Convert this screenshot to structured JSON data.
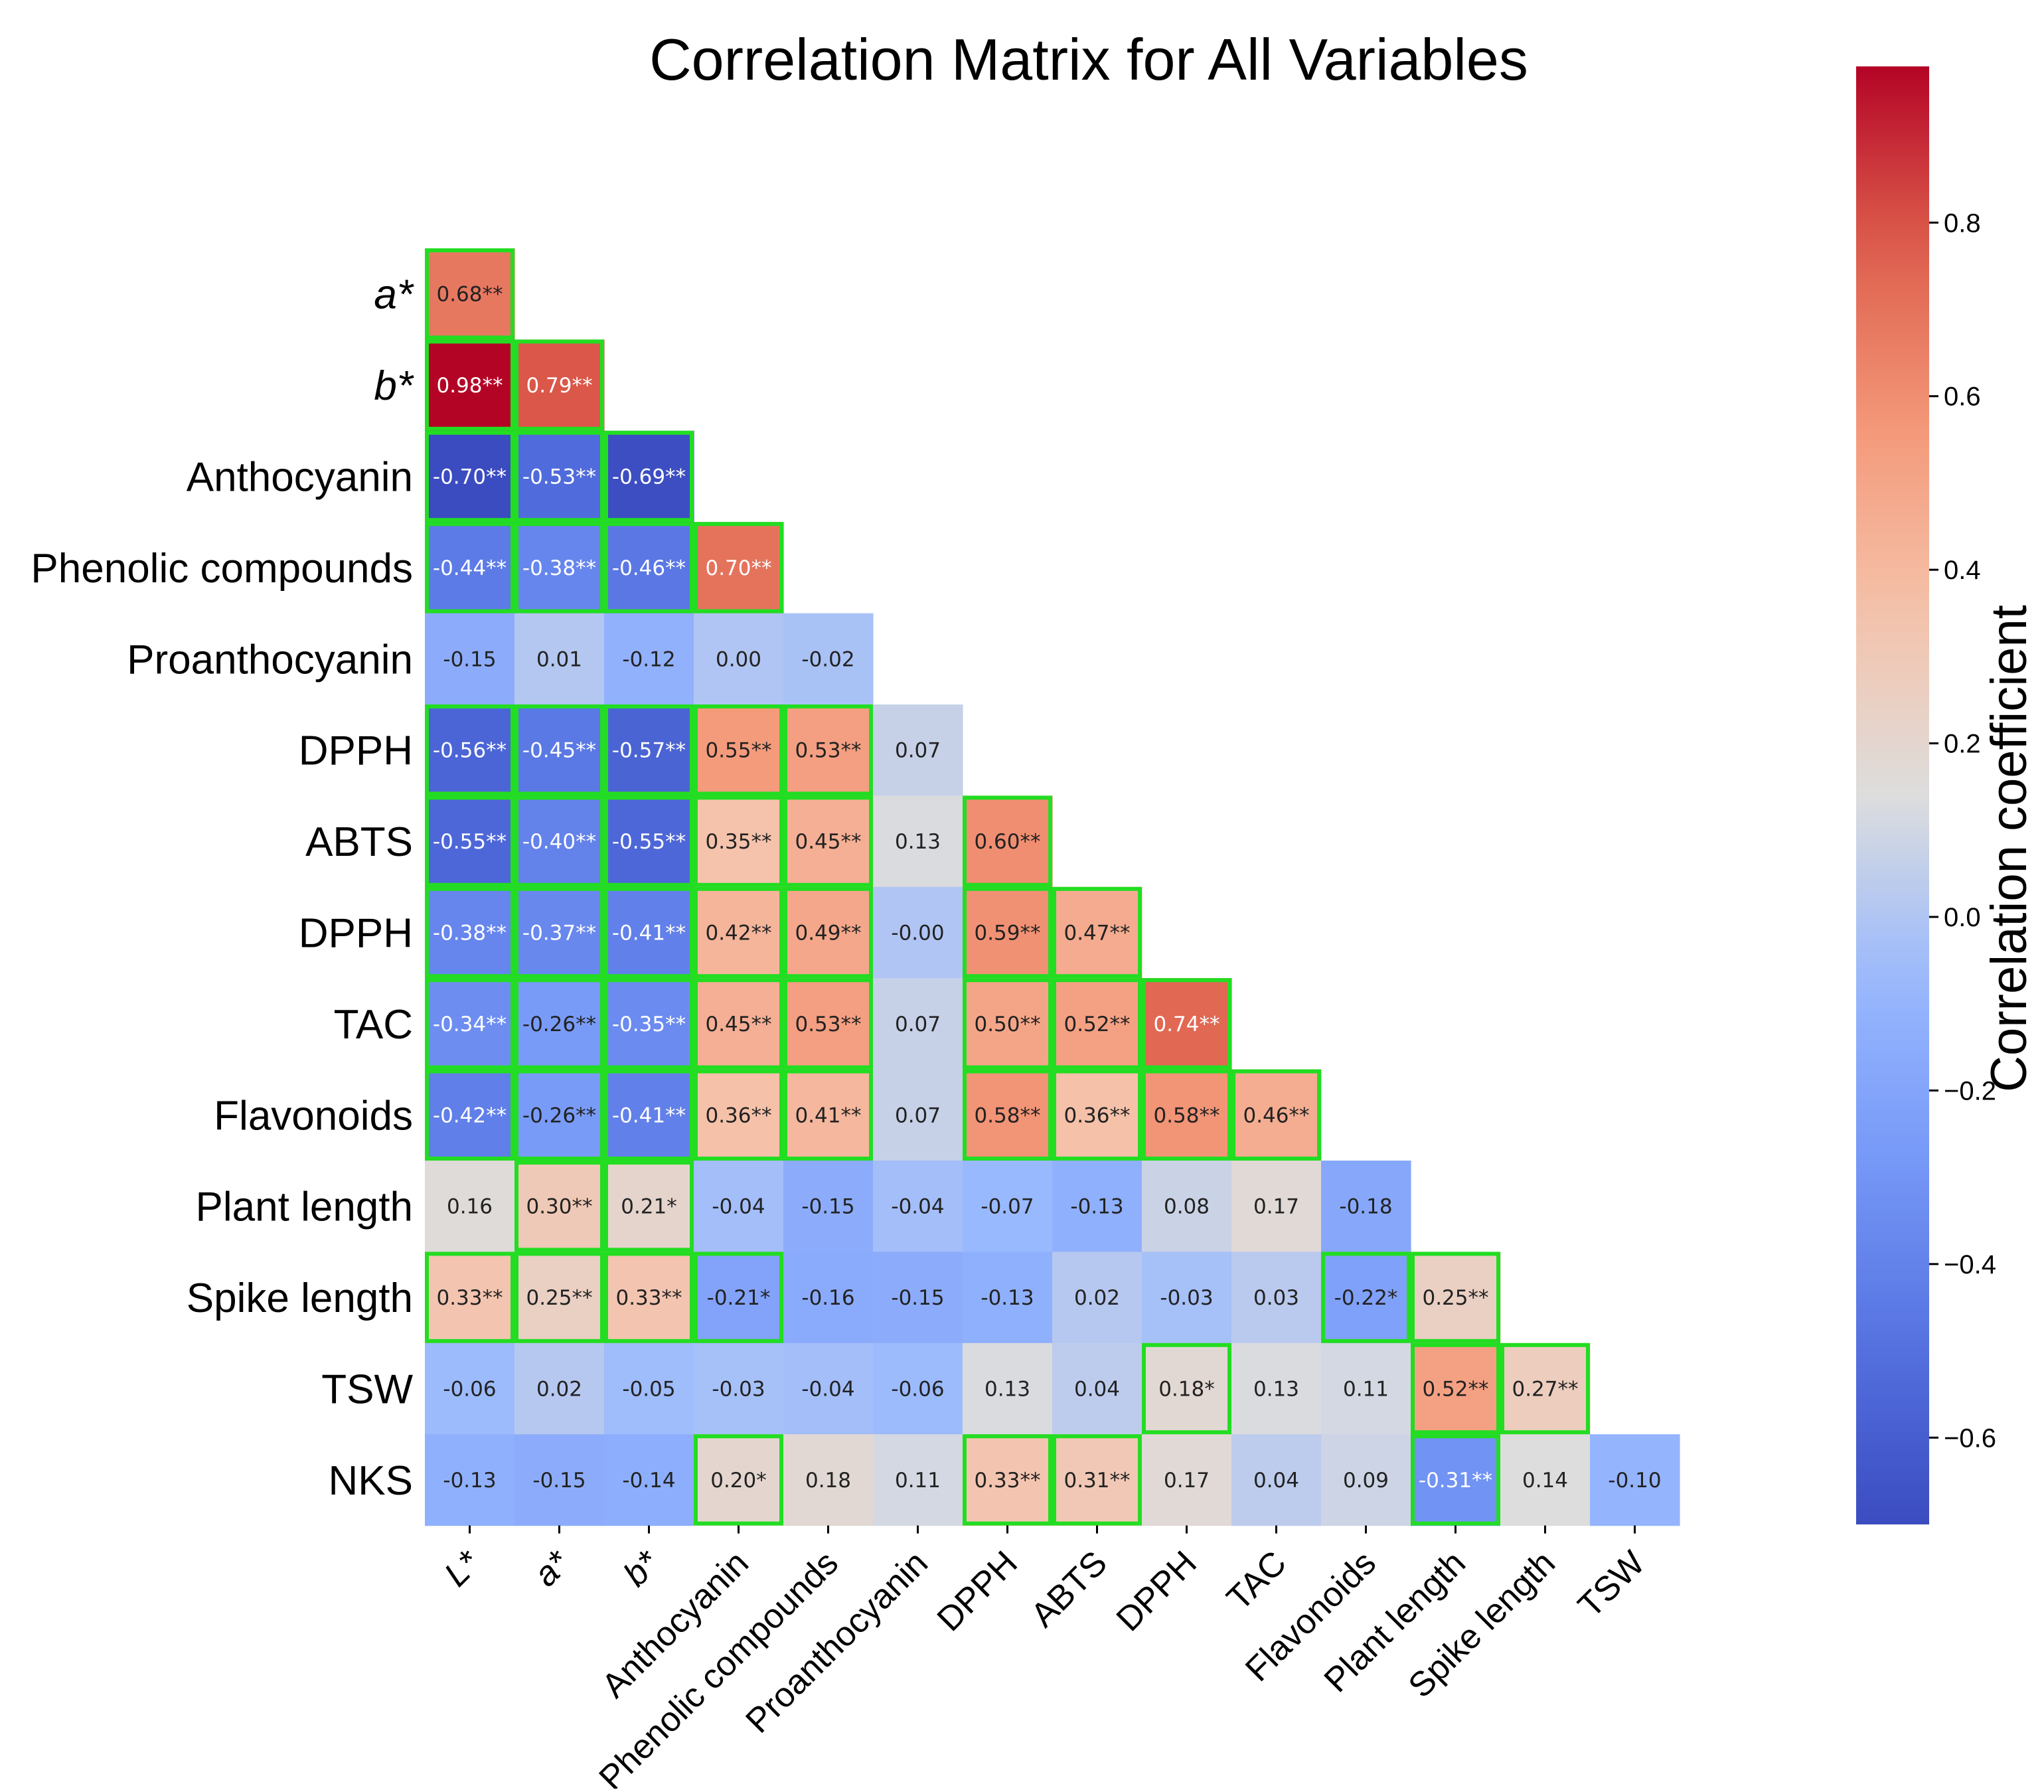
{
  "chart_data": {
    "type": "heatmap",
    "title": "Correlation Matrix for All Variables",
    "colorbar_label": "Correlation coefficient",
    "colorbar_range": [
      -0.7,
      0.98
    ],
    "colorbar_ticks": [
      {
        "value": 0.8,
        "label": "0.8"
      },
      {
        "value": 0.6,
        "label": "0.6"
      },
      {
        "value": 0.4,
        "label": "0.4"
      },
      {
        "value": 0.2,
        "label": "0.2"
      },
      {
        "value": 0.0,
        "label": "0.0"
      },
      {
        "value": -0.2,
        "label": "−0.2"
      },
      {
        "value": -0.4,
        "label": "−0.4"
      },
      {
        "value": -0.6,
        "label": "−0.6"
      }
    ],
    "colormap": "coolwarm",
    "highlight_color": "#22dd22",
    "x_labels": [
      "L*",
      "a*",
      "b*",
      "Anthocyanin",
      "Phenolic compounds",
      "Proanthocyanin",
      "DPPH",
      "ABTS",
      "DPPH",
      "TAC",
      "Flavonoids",
      "Plant length",
      "Spike length",
      "TSW"
    ],
    "x_italic": [
      true,
      true,
      true,
      false,
      false,
      false,
      false,
      false,
      false,
      false,
      false,
      false,
      false,
      false
    ],
    "y_labels": [
      "a*",
      "b*",
      "Anthocyanin",
      "Phenolic compounds",
      "Proanthocyanin",
      "DPPH",
      "ABTS",
      "DPPH",
      "TAC",
      "Flavonoids",
      "Plant length",
      "Spike length",
      "TSW",
      "NKS"
    ],
    "y_italic": [
      true,
      true,
      false,
      false,
      false,
      false,
      false,
      false,
      false,
      false,
      false,
      false,
      false,
      false
    ],
    "rows": [
      [
        {
          "v": 0.68,
          "t": "0.68**",
          "hl": true
        }
      ],
      [
        {
          "v": 0.98,
          "t": "0.98**",
          "hl": true
        },
        {
          "v": 0.79,
          "t": "0.79**",
          "hl": true
        }
      ],
      [
        {
          "v": -0.7,
          "t": "-0.70**",
          "hl": true
        },
        {
          "v": -0.53,
          "t": "-0.53**",
          "hl": true
        },
        {
          "v": -0.69,
          "t": "-0.69**",
          "hl": true
        }
      ],
      [
        {
          "v": -0.44,
          "t": "-0.44**",
          "hl": true
        },
        {
          "v": -0.38,
          "t": "-0.38**",
          "hl": true
        },
        {
          "v": -0.46,
          "t": "-0.46**",
          "hl": true
        },
        {
          "v": 0.7,
          "t": "0.70**",
          "hl": true
        }
      ],
      [
        {
          "v": -0.15,
          "t": "-0.15",
          "hl": false
        },
        {
          "v": 0.01,
          "t": "0.01",
          "hl": false
        },
        {
          "v": -0.12,
          "t": "-0.12",
          "hl": false
        },
        {
          "v": 0.0,
          "t": "0.00",
          "hl": false
        },
        {
          "v": -0.02,
          "t": "-0.02",
          "hl": false
        }
      ],
      [
        {
          "v": -0.56,
          "t": "-0.56**",
          "hl": true
        },
        {
          "v": -0.45,
          "t": "-0.45**",
          "hl": true
        },
        {
          "v": -0.57,
          "t": "-0.57**",
          "hl": true
        },
        {
          "v": 0.55,
          "t": "0.55**",
          "hl": true
        },
        {
          "v": 0.53,
          "t": "0.53**",
          "hl": true
        },
        {
          "v": 0.07,
          "t": "0.07",
          "hl": false
        }
      ],
      [
        {
          "v": -0.55,
          "t": "-0.55**",
          "hl": true
        },
        {
          "v": -0.4,
          "t": "-0.40**",
          "hl": true
        },
        {
          "v": -0.55,
          "t": "-0.55**",
          "hl": true
        },
        {
          "v": 0.35,
          "t": "0.35**",
          "hl": true
        },
        {
          "v": 0.45,
          "t": "0.45**",
          "hl": true
        },
        {
          "v": 0.13,
          "t": "0.13",
          "hl": false
        },
        {
          "v": 0.6,
          "t": "0.60**",
          "hl": true
        }
      ],
      [
        {
          "v": -0.38,
          "t": "-0.38**",
          "hl": true
        },
        {
          "v": -0.37,
          "t": "-0.37**",
          "hl": true
        },
        {
          "v": -0.41,
          "t": "-0.41**",
          "hl": true
        },
        {
          "v": 0.42,
          "t": "0.42**",
          "hl": true
        },
        {
          "v": 0.49,
          "t": "0.49**",
          "hl": true
        },
        {
          "v": -0.0,
          "t": "-0.00",
          "hl": false
        },
        {
          "v": 0.59,
          "t": "0.59**",
          "hl": true
        },
        {
          "v": 0.47,
          "t": "0.47**",
          "hl": true
        }
      ],
      [
        {
          "v": -0.34,
          "t": "-0.34**",
          "hl": true
        },
        {
          "v": -0.26,
          "t": "-0.26**",
          "hl": true
        },
        {
          "v": -0.35,
          "t": "-0.35**",
          "hl": true
        },
        {
          "v": 0.45,
          "t": "0.45**",
          "hl": true
        },
        {
          "v": 0.53,
          "t": "0.53**",
          "hl": true
        },
        {
          "v": 0.07,
          "t": "0.07",
          "hl": false
        },
        {
          "v": 0.5,
          "t": "0.50**",
          "hl": true
        },
        {
          "v": 0.52,
          "t": "0.52**",
          "hl": true
        },
        {
          "v": 0.74,
          "t": "0.74**",
          "hl": true
        }
      ],
      [
        {
          "v": -0.42,
          "t": "-0.42**",
          "hl": true
        },
        {
          "v": -0.26,
          "t": "-0.26**",
          "hl": true
        },
        {
          "v": -0.41,
          "t": "-0.41**",
          "hl": true
        },
        {
          "v": 0.36,
          "t": "0.36**",
          "hl": true
        },
        {
          "v": 0.41,
          "t": "0.41**",
          "hl": true
        },
        {
          "v": 0.07,
          "t": "0.07",
          "hl": false
        },
        {
          "v": 0.58,
          "t": "0.58**",
          "hl": true
        },
        {
          "v": 0.36,
          "t": "0.36**",
          "hl": true
        },
        {
          "v": 0.58,
          "t": "0.58**",
          "hl": true
        },
        {
          "v": 0.46,
          "t": "0.46**",
          "hl": true
        }
      ],
      [
        {
          "v": 0.16,
          "t": "0.16",
          "hl": false
        },
        {
          "v": 0.3,
          "t": "0.30**",
          "hl": true
        },
        {
          "v": 0.21,
          "t": "0.21*",
          "hl": true
        },
        {
          "v": -0.04,
          "t": "-0.04",
          "hl": false
        },
        {
          "v": -0.15,
          "t": "-0.15",
          "hl": false
        },
        {
          "v": -0.04,
          "t": "-0.04",
          "hl": false
        },
        {
          "v": -0.07,
          "t": "-0.07",
          "hl": false
        },
        {
          "v": -0.13,
          "t": "-0.13",
          "hl": false
        },
        {
          "v": 0.08,
          "t": "0.08",
          "hl": false
        },
        {
          "v": 0.17,
          "t": "0.17",
          "hl": false
        },
        {
          "v": -0.18,
          "t": "-0.18",
          "hl": false
        }
      ],
      [
        {
          "v": 0.33,
          "t": "0.33**",
          "hl": true
        },
        {
          "v": 0.25,
          "t": "0.25**",
          "hl": true
        },
        {
          "v": 0.33,
          "t": "0.33**",
          "hl": true
        },
        {
          "v": -0.21,
          "t": "-0.21*",
          "hl": true
        },
        {
          "v": -0.16,
          "t": "-0.16",
          "hl": false
        },
        {
          "v": -0.15,
          "t": "-0.15",
          "hl": false
        },
        {
          "v": -0.13,
          "t": "-0.13",
          "hl": false
        },
        {
          "v": 0.02,
          "t": "0.02",
          "hl": false
        },
        {
          "v": -0.03,
          "t": "-0.03",
          "hl": false
        },
        {
          "v": 0.03,
          "t": "0.03",
          "hl": false
        },
        {
          "v": -0.22,
          "t": "-0.22*",
          "hl": true
        },
        {
          "v": 0.25,
          "t": "0.25**",
          "hl": true
        }
      ],
      [
        {
          "v": -0.06,
          "t": "-0.06",
          "hl": false
        },
        {
          "v": 0.02,
          "t": "0.02",
          "hl": false
        },
        {
          "v": -0.05,
          "t": "-0.05",
          "hl": false
        },
        {
          "v": -0.03,
          "t": "-0.03",
          "hl": false
        },
        {
          "v": -0.04,
          "t": "-0.04",
          "hl": false
        },
        {
          "v": -0.06,
          "t": "-0.06",
          "hl": false
        },
        {
          "v": 0.13,
          "t": "0.13",
          "hl": false
        },
        {
          "v": 0.04,
          "t": "0.04",
          "hl": false
        },
        {
          "v": 0.18,
          "t": "0.18*",
          "hl": true
        },
        {
          "v": 0.13,
          "t": "0.13",
          "hl": false
        },
        {
          "v": 0.11,
          "t": "0.11",
          "hl": false
        },
        {
          "v": 0.52,
          "t": "0.52**",
          "hl": true
        },
        {
          "v": 0.27,
          "t": "0.27**",
          "hl": true
        }
      ],
      [
        {
          "v": -0.13,
          "t": "-0.13",
          "hl": false
        },
        {
          "v": -0.15,
          "t": "-0.15",
          "hl": false
        },
        {
          "v": -0.14,
          "t": "-0.14",
          "hl": false
        },
        {
          "v": 0.2,
          "t": "0.20*",
          "hl": true
        },
        {
          "v": 0.18,
          "t": "0.18",
          "hl": false
        },
        {
          "v": 0.11,
          "t": "0.11",
          "hl": false
        },
        {
          "v": 0.33,
          "t": "0.33**",
          "hl": true
        },
        {
          "v": 0.31,
          "t": "0.31**",
          "hl": true
        },
        {
          "v": 0.17,
          "t": "0.17",
          "hl": false
        },
        {
          "v": 0.04,
          "t": "0.04",
          "hl": false
        },
        {
          "v": 0.09,
          "t": "0.09",
          "hl": false
        },
        {
          "v": -0.31,
          "t": "-0.31**",
          "hl": true
        },
        {
          "v": 0.14,
          "t": "0.14",
          "hl": false
        },
        {
          "v": -0.1,
          "t": "-0.10",
          "hl": false
        }
      ]
    ]
  }
}
